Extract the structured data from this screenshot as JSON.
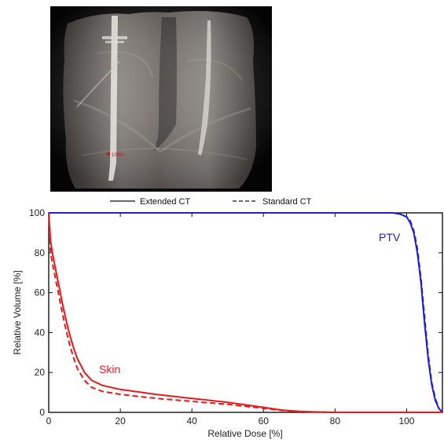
{
  "image_panel": {
    "marker_text": "105%"
  },
  "chart_data": {
    "type": "line",
    "xlabel": "Relative Dose [%]",
    "ylabel": "Relative Volume [%]",
    "xlim": [
      0,
      110
    ],
    "ylim": [
      0,
      100
    ],
    "xticks": [
      0,
      20,
      40,
      60,
      80,
      100
    ],
    "yticks": [
      0,
      20,
      40,
      60,
      80,
      100
    ],
    "legend": {
      "position": "top",
      "entries": [
        {
          "label": "Extended CT",
          "style": "solid"
        },
        {
          "label": "Standard CT",
          "style": "dashed"
        }
      ]
    },
    "grid": false,
    "structures": [
      {
        "label": "Skin",
        "color": "#e41a1c"
      },
      {
        "label": "PTV",
        "color": "#1f1fd6"
      }
    ],
    "series": [
      {
        "structure": "PTV",
        "ct": "Extended CT",
        "style": "solid",
        "color": "#1f1fd6",
        "x": [
          0,
          96,
          98,
          100,
          101,
          102,
          103,
          104,
          105,
          106,
          107,
          108,
          109,
          110
        ],
        "y": [
          100,
          100,
          99.5,
          98,
          95,
          90,
          80,
          65,
          45,
          27,
          14,
          6,
          2,
          0
        ]
      },
      {
        "structure": "PTV",
        "ct": "Standard CT",
        "style": "dashed",
        "color": "#1f1fd6",
        "x": [
          0,
          96,
          98,
          100,
          101,
          102,
          103,
          104,
          105,
          106,
          107,
          108,
          109,
          110
        ],
        "y": [
          100,
          100,
          99.5,
          98,
          96,
          91,
          82,
          67,
          48,
          29,
          15,
          7,
          2,
          0
        ]
      },
      {
        "structure": "Skin",
        "ct": "Extended CT",
        "style": "solid",
        "color": "#e41a1c",
        "x": [
          0,
          0.5,
          1,
          2,
          3,
          4,
          5,
          6,
          7,
          8,
          10,
          12,
          15,
          20,
          30,
          40,
          50,
          60,
          65,
          70,
          75,
          80,
          110
        ],
        "y": [
          100,
          86,
          80,
          71,
          62,
          53,
          45,
          38,
          32,
          27,
          20,
          16,
          13.5,
          11.5,
          9,
          7,
          5,
          2.5,
          1.2,
          0.5,
          0.2,
          0,
          0
        ]
      },
      {
        "structure": "Skin",
        "ct": "Standard CT",
        "style": "dashed",
        "color": "#e41a1c",
        "x": [
          0,
          0.5,
          1,
          2,
          3,
          4,
          5,
          6,
          7,
          8,
          10,
          12,
          15,
          20,
          30,
          40,
          50,
          60,
          65,
          70,
          75,
          80,
          110
        ],
        "y": [
          100,
          80,
          75,
          66,
          57,
          48,
          40,
          33,
          27,
          22,
          16,
          12.5,
          10.5,
          9,
          7,
          5.5,
          4,
          2,
          1,
          0.4,
          0.1,
          0,
          0
        ]
      }
    ]
  }
}
